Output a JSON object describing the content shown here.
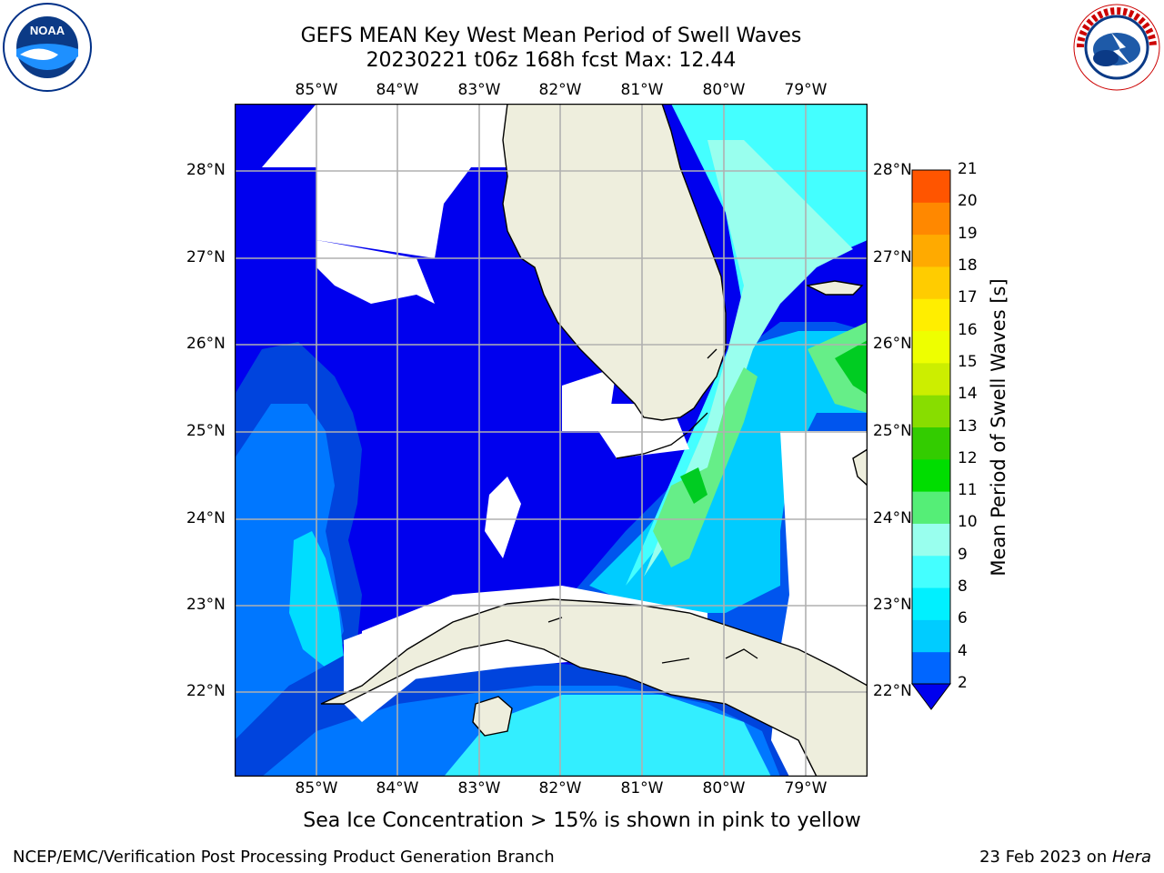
{
  "header": {
    "title_line1": "GEFS MEAN Key West Mean Period of Swell Waves",
    "title_line2": "20230221 t06z 168h fcst   Max: 12.44"
  },
  "logos": {
    "left": "NOAA",
    "left_ring_text": "NATIONAL OCEANIC AND ATMOSPHERIC ADMINISTRATION · U.S. DEPARTMENT OF COMMERCE",
    "right_ring_text": "NATIONAL WEATHER SERVICE"
  },
  "map": {
    "lon_labels": [
      "85°W",
      "84°W",
      "83°W",
      "82°W",
      "81°W",
      "80°W",
      "79°W"
    ],
    "lat_labels": [
      "28°N",
      "27°N",
      "26°N",
      "25°N",
      "24°N",
      "23°N",
      "22°N"
    ],
    "lon_range": [
      -86,
      -78.3
    ],
    "lat_range": [
      21.1,
      28.8
    ],
    "land_color": "#eeeedd",
    "nodata_color": "#ffffff"
  },
  "colorbar": {
    "title": "Mean Period of Swell Waves [s]",
    "levels": [
      "2",
      "4",
      "6",
      "8",
      "9",
      "10",
      "11",
      "12",
      "13",
      "14",
      "15",
      "16",
      "17",
      "18",
      "19",
      "20",
      "21"
    ],
    "colors": [
      "#0066ff",
      "#00ccff",
      "#00f0ff",
      "#44ffff",
      "#99ffee",
      "#55ee77",
      "#00dd00",
      "#33cc00",
      "#88dd00",
      "#ccee00",
      "#eeff00",
      "#ffee00",
      "#ffcc00",
      "#ffaa00",
      "#ff8800",
      "#ff5500",
      "#ff2200",
      "#ff0000"
    ],
    "under_color": "#0000ee"
  },
  "notes": {
    "sea_ice": "Sea Ice Concentration > 15% is shown in pink to yellow"
  },
  "footer": {
    "left": "NCEP/EMC/Verification Post Processing Product Generation Branch",
    "right_prefix": "23 Feb 2023 on ",
    "right_machine": "Hera"
  }
}
